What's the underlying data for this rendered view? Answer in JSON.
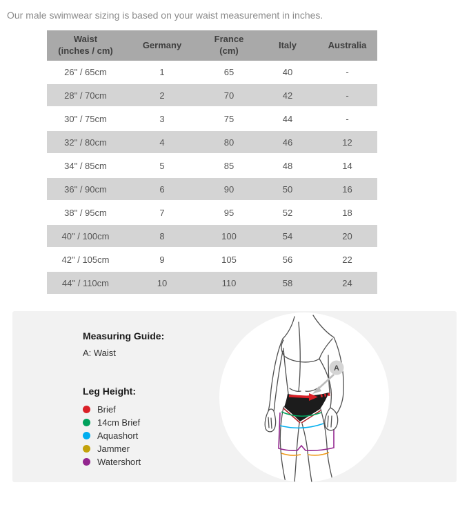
{
  "intro": {
    "text": "Our male swimwear sizing is based on your waist measurement in inches."
  },
  "size_table": {
    "columns": [
      {
        "label": "Waist",
        "sub": "(inches / cm)"
      },
      {
        "label": "Germany",
        "sub": ""
      },
      {
        "label": "France",
        "sub": "(cm)"
      },
      {
        "label": "Italy",
        "sub": ""
      },
      {
        "label": "Australia",
        "sub": ""
      }
    ],
    "rows": [
      [
        "26\" / 65cm",
        "1",
        "65",
        "40",
        "-"
      ],
      [
        "28\" / 70cm",
        "2",
        "70",
        "42",
        "-"
      ],
      [
        "30\" / 75cm",
        "3",
        "75",
        "44",
        "-"
      ],
      [
        "32\" / 80cm",
        "4",
        "80",
        "46",
        "12"
      ],
      [
        "34\" / 85cm",
        "5",
        "85",
        "48",
        "14"
      ],
      [
        "36\" / 90cm",
        "6",
        "90",
        "50",
        "16"
      ],
      [
        "38\" / 95cm",
        "7",
        "95",
        "52",
        "18"
      ],
      [
        "40\" / 100cm",
        "8",
        "100",
        "54",
        "20"
      ],
      [
        "42\" / 105cm",
        "9",
        "105",
        "56",
        "22"
      ],
      [
        "44\" / 110cm",
        "10",
        "110",
        "58",
        "24"
      ]
    ],
    "colors": {
      "header_bg": "#a9a9a9",
      "alt_row_bg": "#d4d4d4",
      "header_text": "#3f3f3f",
      "cell_text": "#555555"
    }
  },
  "measuring": {
    "guide_title": "Measuring Guide:",
    "guide_item": "A: Waist",
    "badge": "A",
    "leg_height": {
      "title": "Leg Height:",
      "items": [
        {
          "label": "Brief",
          "color": "#da2128"
        },
        {
          "label": "14cm Brief",
          "color": "#00a15c"
        },
        {
          "label": "Aquashort",
          "color": "#00aeef"
        },
        {
          "label": "Jammer",
          "color": "#c3a20b"
        },
        {
          "label": "Watershort",
          "color": "#93268f"
        }
      ]
    },
    "panel_bg": "#f2f2f2"
  }
}
